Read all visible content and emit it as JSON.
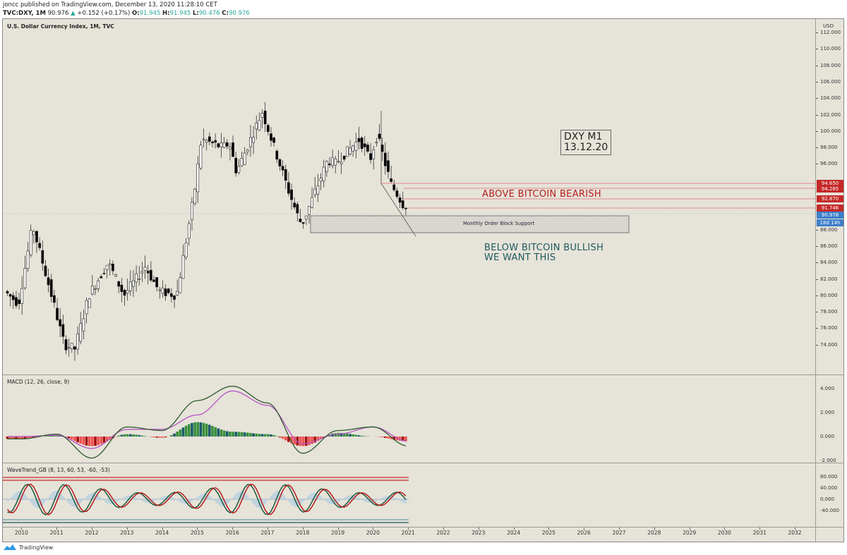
{
  "header": {
    "publisher_line": "joncc published on TradingView.com, December 13, 2020 11:28:10 CET",
    "symbol": "TVC:DXY, 1M",
    "last": "90.976",
    "change_arrow": "▲",
    "change": "+0.152 (+0.17%)",
    "o_label": "O:",
    "o": "91.945",
    "h_label": "H:",
    "h": "91.945",
    "l_label": "L:",
    "l": "90.476",
    "c_label": "C:",
    "c": "90.976"
  },
  "price_pane": {
    "title": "U.S. Dollar Currency Index, 1M, TVC",
    "currency": "USD",
    "y_ticks": [
      "112.000",
      "110.000",
      "108.000",
      "106.000",
      "104.000",
      "102.000",
      "100.000",
      "98.000",
      "96.000",
      "88.000",
      "86.000",
      "84.000",
      "82.000",
      "80.000",
      "78.000",
      "76.000",
      "74.000"
    ],
    "price_tags": [
      {
        "value": "94.650",
        "color": "#c62828"
      },
      {
        "value": "94.285",
        "color": "#c62828"
      },
      {
        "value": "92.870",
        "color": "#c62828"
      },
      {
        "value": "91.746",
        "color": "#c62828"
      },
      {
        "value": "90.976",
        "color": "#3d7fc9"
      },
      {
        "value": "18d 14h",
        "color": "#3d7fc9"
      }
    ]
  },
  "annotations": {
    "box_line1": "DXY M1",
    "box_line2": "13.12.20",
    "bearish": "ABOVE BITCOIN BEARISH",
    "bullish_line1": "BELOW BITCOIN BULLISH",
    "bullish_line2": "WE WANT THIS",
    "order_block": "Monthly Order Block Support"
  },
  "macd_pane": {
    "title": "MACD (12, 26, close, 9)",
    "y_ticks": [
      "4.000",
      "2.000",
      "0.000",
      "-2.000"
    ]
  },
  "wavetrend_pane": {
    "title": "WaveTrend_GB (8, 13, 60, 53, -60, -53)",
    "y_ticks": [
      "80.000",
      "40.000",
      "0.000",
      "-40.000"
    ]
  },
  "x_axis": {
    "labels": [
      "2010",
      "2011",
      "2012",
      "2013",
      "2014",
      "2015",
      "2016",
      "2017",
      "2018",
      "2019",
      "2020",
      "2021",
      "2022",
      "2023",
      "2024",
      "2025",
      "2026",
      "2027",
      "2028",
      "2029",
      "2030",
      "2031",
      "2032"
    ]
  },
  "footer": {
    "brand": "TradingView"
  },
  "chart_data": [
    {
      "type": "candlestick",
      "title": "U.S. Dollar Currency Index, 1M, TVC",
      "ylabel": "USD",
      "ylim": [
        72,
        113
      ],
      "x": [
        "2010",
        "2011",
        "2012",
        "2013",
        "2014",
        "2015",
        "2016",
        "2017",
        "2018",
        "2019",
        "2020",
        "2021"
      ],
      "approx_close_by_year_start": [
        79.0,
        79.0,
        80.0,
        80.0,
        80.5,
        92.5,
        98.5,
        101.5,
        89.0,
        96.0,
        96.5,
        90.98
      ],
      "high_points": {
        "2010": 88.7,
        "2017": 103.8,
        "2020": 103.0
      },
      "low_points": {
        "2011": 72.7,
        "2018": 88.3
      },
      "last": {
        "open": 91.945,
        "high": 91.945,
        "low": 90.476,
        "close": 90.976
      },
      "horizontal_levels": [
        94.65,
        94.285,
        92.87,
        91.746
      ],
      "zones": [
        {
          "label": "Monthly Order Block Support",
          "from": 88.8,
          "to": 90.7,
          "x_start": "2018",
          "x_end": "2027.3"
        }
      ]
    },
    {
      "type": "bar+line",
      "title": "MACD (12, 26, close, 9)",
      "ylim": [
        -2.3,
        5.2
      ],
      "y_ticks": [
        4,
        2,
        0,
        -2
      ],
      "x": [
        "2010",
        "2011",
        "2012",
        "2013",
        "2014",
        "2015",
        "2016",
        "2017",
        "2018",
        "2019",
        "2020",
        "2021"
      ],
      "series": [
        {
          "name": "MACD",
          "values": [
            -0.2,
            0.2,
            -1.8,
            0.8,
            0.5,
            3.0,
            4.2,
            2.8,
            -1.4,
            0.5,
            0.8,
            -0.8
          ]
        },
        {
          "name": "Signal",
          "values": [
            0.0,
            0.1,
            -1.0,
            0.6,
            0.6,
            1.8,
            3.8,
            2.6,
            -0.6,
            0.2,
            0.8,
            -0.4
          ]
        },
        {
          "name": "Histogram",
          "values": [
            -0.3,
            0.6,
            -1.0,
            0.6,
            -0.2,
            1.5,
            0.5,
            -0.5,
            -1.3,
            0.4,
            0.2,
            -0.6
          ]
        }
      ]
    },
    {
      "type": "line",
      "title": "WaveTrend_GB (8, 13, 60, 53, -60, -53)",
      "ylim": [
        -55,
        85
      ],
      "y_ticks": [
        80,
        40,
        0,
        -40
      ],
      "x": [
        "2010",
        "2011",
        "2012",
        "2013",
        "2014",
        "2015",
        "2016",
        "2017",
        "2018",
        "2019",
        "2020",
        "2021"
      ],
      "series": [
        {
          "name": "WT1",
          "values": [
            -30,
            20,
            -45,
            30,
            15,
            -35,
            70,
            45,
            -45,
            20,
            40,
            -40
          ]
        },
        {
          "name": "WT2",
          "values": [
            -25,
            15,
            -40,
            25,
            20,
            -30,
            65,
            45,
            -40,
            25,
            45,
            -35
          ]
        }
      ],
      "levels": [
        60,
        53,
        -53,
        -60
      ]
    }
  ]
}
